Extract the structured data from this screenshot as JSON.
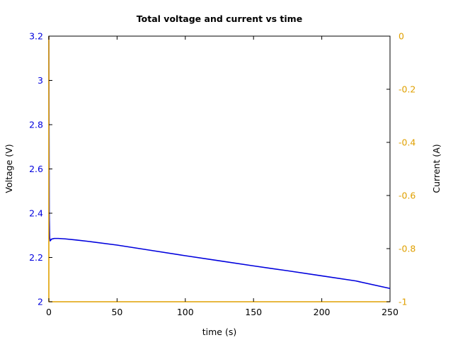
{
  "chart_data": {
    "type": "line",
    "title": "Total voltage and current vs time",
    "xlabel": "time (s)",
    "ylabel_left": "Voltage (V)",
    "ylabel_right": "Current (A)",
    "xlim": [
      0,
      250
    ],
    "ylim_left": [
      2,
      3.2
    ],
    "ylim_right": [
      -1,
      0
    ],
    "x_ticks": [
      "0",
      "50",
      "100",
      "150",
      "200",
      "250"
    ],
    "y_left_ticks": [
      "2",
      "2.2",
      "2.4",
      "2.6",
      "2.8",
      "3",
      "3.2"
    ],
    "y_right_ticks": [
      "-1",
      "-0.8",
      "-0.6",
      "-0.4",
      "-0.2",
      "0"
    ],
    "grid": false,
    "colors": {
      "voltage": "#0000dd",
      "current": "#e0a000",
      "axes": "#000000"
    },
    "series": [
      {
        "axis": "left",
        "color": "#0000dd",
        "x": [
          0,
          0.3,
          0.6,
          1,
          2,
          4,
          7,
          12,
          20,
          30,
          50,
          75,
          100,
          125,
          150,
          175,
          200,
          225,
          250
        ],
        "y": [
          3.2,
          2.4,
          2.29,
          2.275,
          2.283,
          2.286,
          2.286,
          2.284,
          2.279,
          2.272,
          2.256,
          2.232,
          2.208,
          2.185,
          2.162,
          2.14,
          2.117,
          2.094,
          2.06
        ]
      },
      {
        "axis": "right",
        "color": "#e0a000",
        "x": [
          0,
          0,
          250
        ],
        "y": [
          0,
          -1,
          -1
        ]
      }
    ]
  }
}
